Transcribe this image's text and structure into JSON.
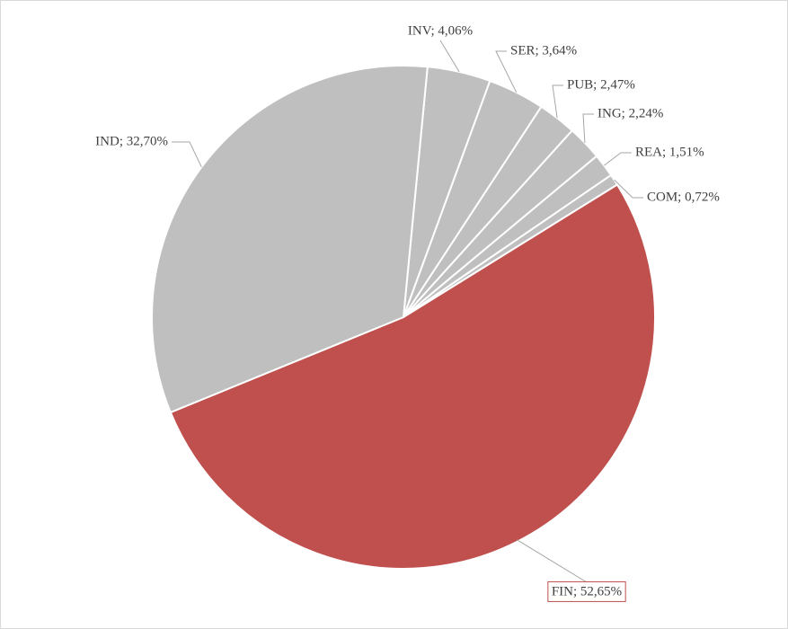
{
  "chart_data": {
    "type": "pie",
    "values": [
      4.06,
      3.64,
      2.47,
      2.24,
      1.51,
      0.72,
      52.65,
      32.7
    ],
    "value_labels": [
      "INV; 4,06%",
      "SER; 3,64%",
      "PUB; 2,47%",
      "ING; 2,24%",
      "REA; 1,51%",
      "COM; 0,72%",
      "FIN; 52,65%",
      "IND; 32,70%"
    ],
    "colors": [
      "#bfbfbf",
      "#bfbfbf",
      "#bfbfbf",
      "#bfbfbf",
      "#bfbfbf",
      "#bfbfbf",
      "#c0504d",
      "#bfbfbf"
    ]
  }
}
